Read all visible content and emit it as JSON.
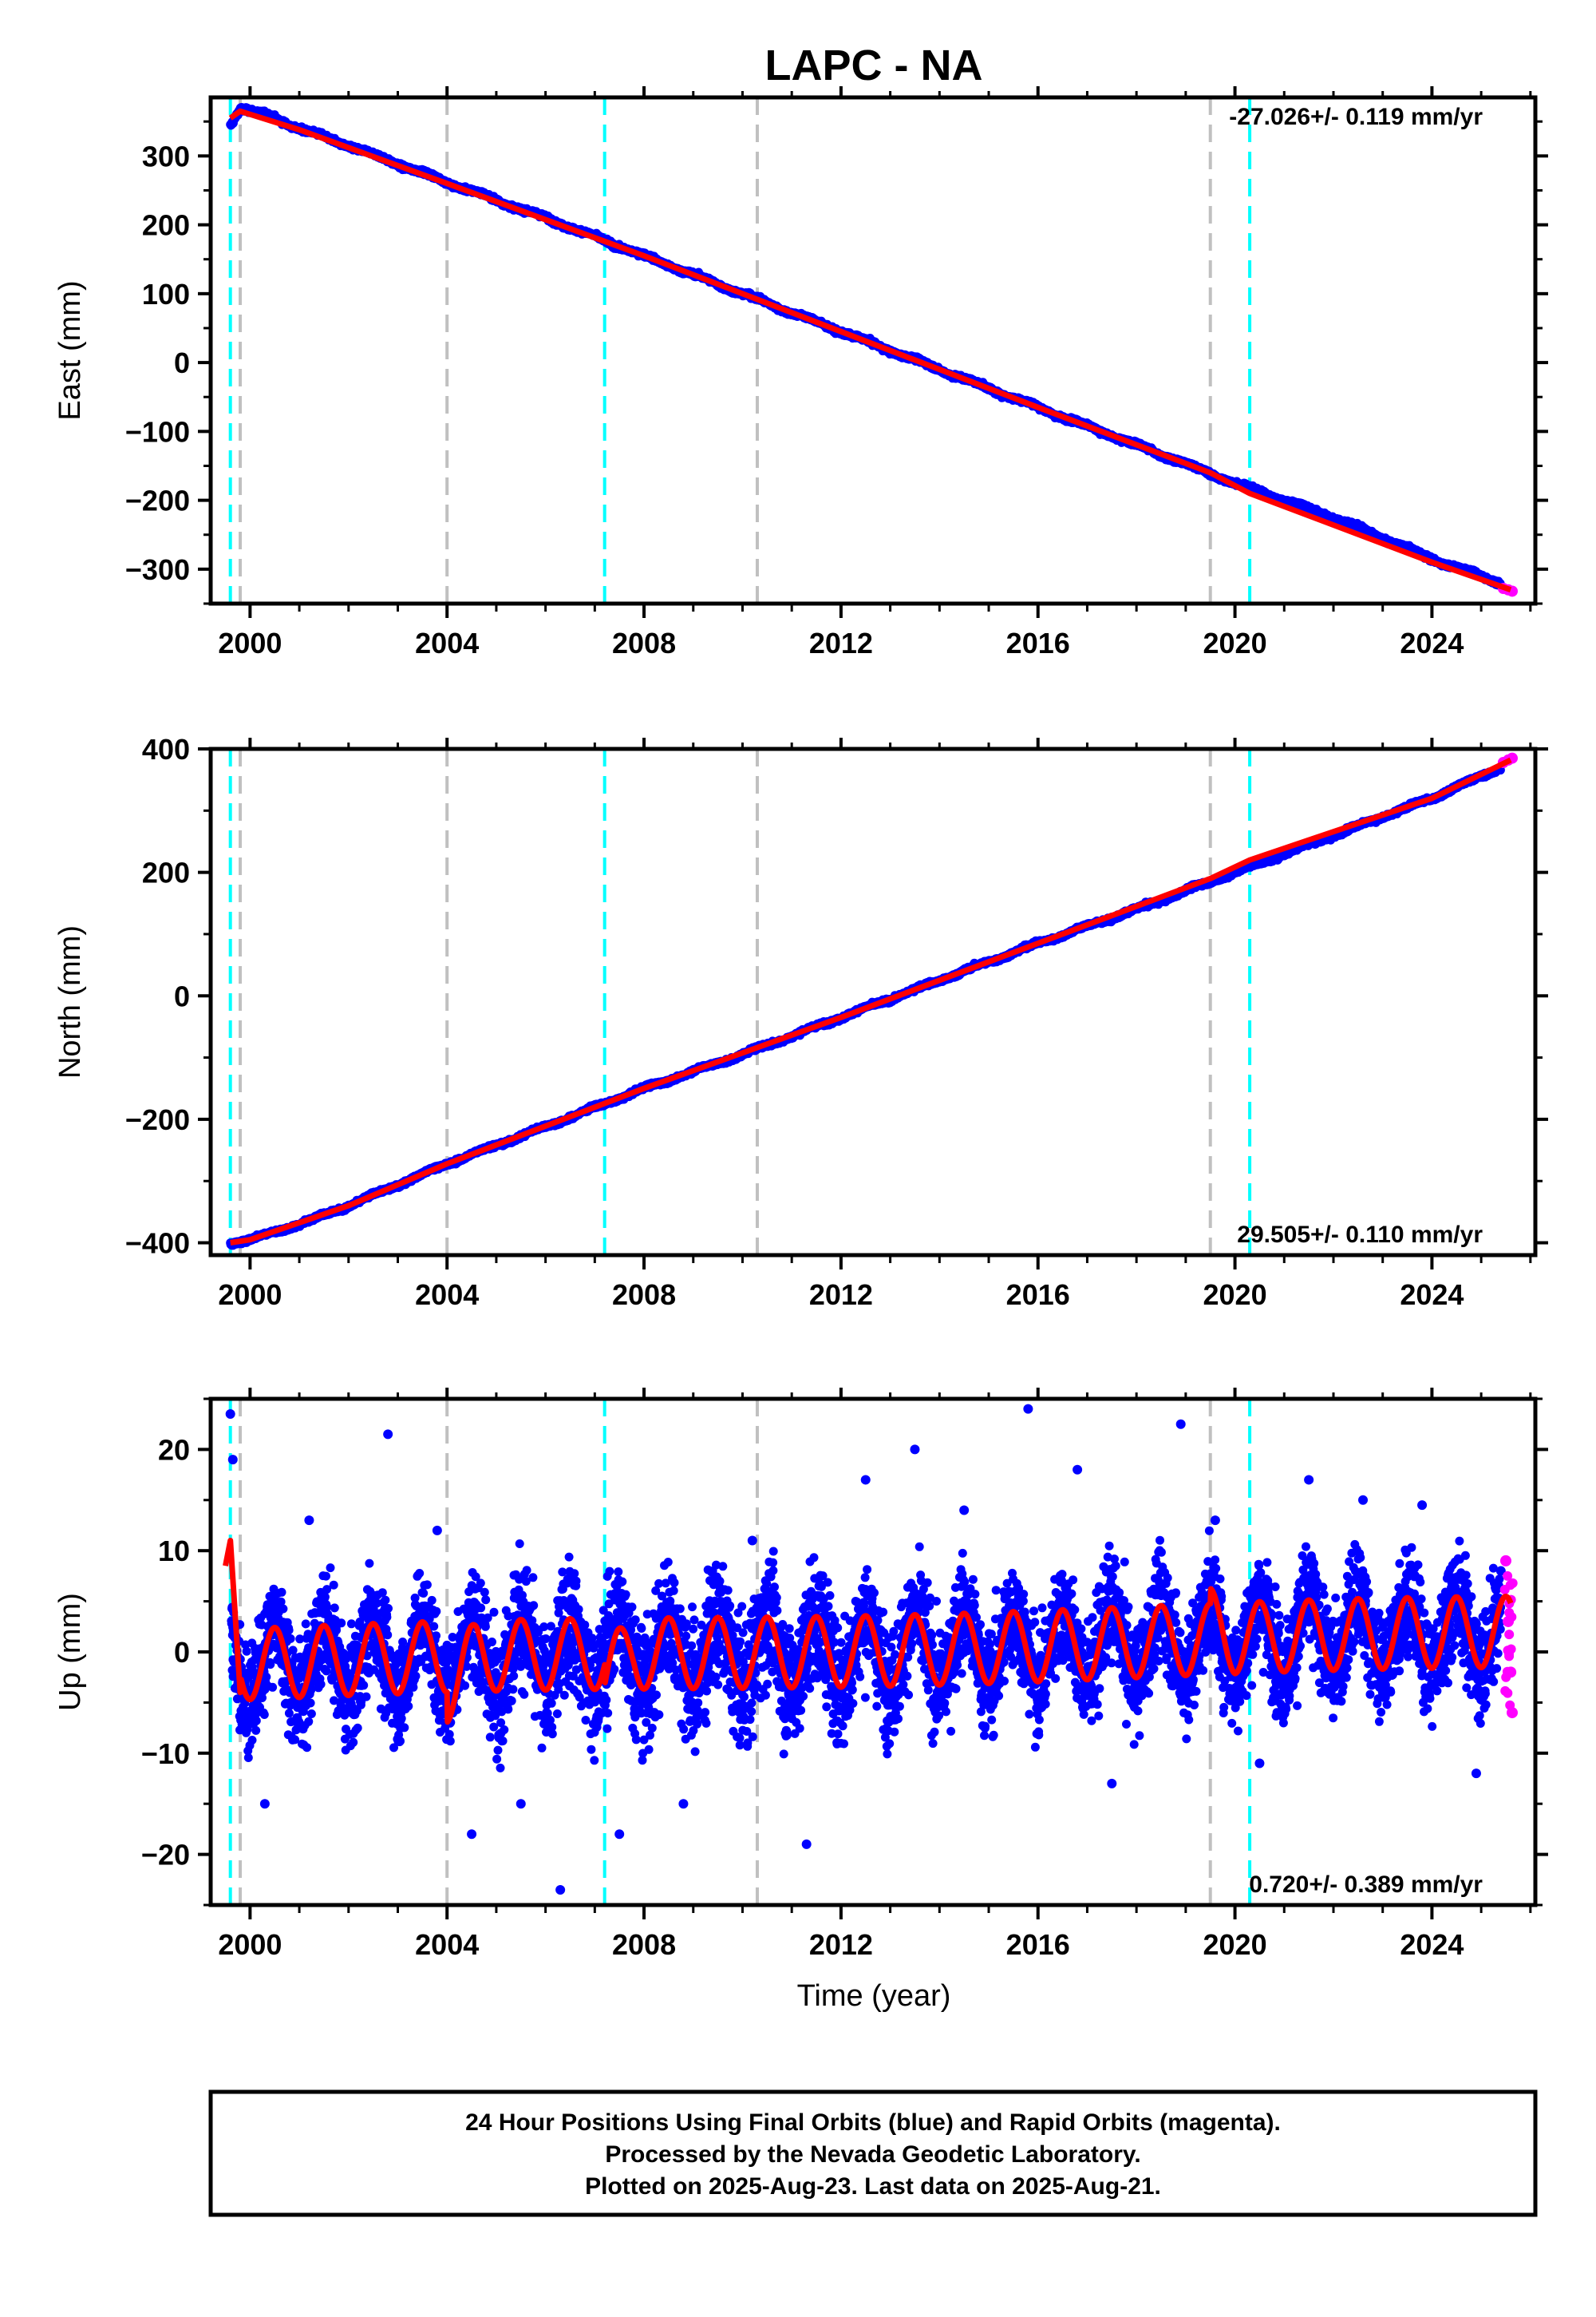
{
  "chart_data": [
    {
      "type": "line",
      "title": "LAPC - NA",
      "ylabel": "East (mm)",
      "xlabel": "",
      "xlim": [
        1999.2,
        2026.1
      ],
      "ylim": [
        -350,
        385
      ],
      "xticks": [
        2000,
        2004,
        2008,
        2012,
        2016,
        2020,
        2024
      ],
      "xtick_labels": [
        "2000",
        "2004",
        "2008",
        "2012",
        "2016",
        "2020",
        "2024"
      ],
      "yticks": [
        -300,
        -200,
        -100,
        0,
        100,
        200,
        300
      ],
      "ytick_labels": [
        "−300",
        "−200",
        "−100",
        "0",
        "100",
        "200",
        "300"
      ],
      "rate_label": "-27.026+/- 0.119 mm/yr",
      "rate_position": "top-right",
      "grid": false,
      "series": [
        {
          "role": "final orbits",
          "color": "#0000ff",
          "style": "points",
          "x": [
            1999.6,
            1999.8,
            2000.5,
            2001.0,
            2002.0,
            2004.0,
            2006.0,
            2008.0,
            2010.0,
            2012.0,
            2014.0,
            2016.0,
            2018.0,
            2020.0,
            2022.0,
            2024.0,
            2025.4
          ],
          "y": [
            345,
            370,
            355,
            340,
            315,
            262,
            210,
            155,
            100,
            45,
            -10,
            -65,
            -120,
            -175,
            -225,
            -285,
            -320
          ]
        },
        {
          "role": "rapid orbits",
          "color": "#ff00ff",
          "style": "points",
          "x": [
            2025.45,
            2025.55,
            2025.63
          ],
          "y": [
            -328,
            -330,
            -332
          ]
        },
        {
          "role": "model fit",
          "color": "#ff0000",
          "style": "line",
          "x": [
            1999.6,
            1999.8,
            2001.0,
            2004.0,
            2008.0,
            2012.0,
            2016.0,
            2019.5,
            2020.3,
            2024.0,
            2025.6
          ],
          "y": [
            355,
            365,
            338,
            260,
            155,
            45,
            -65,
            -160,
            -190,
            -290,
            -330
          ]
        }
      ],
      "vlines": [
        {
          "x": 1999.6,
          "color": "#00ffff"
        },
        {
          "x": 1999.8,
          "color": "#c0c0c0"
        },
        {
          "x": 2004.0,
          "color": "#c0c0c0"
        },
        {
          "x": 2007.2,
          "color": "#00ffff"
        },
        {
          "x": 2010.3,
          "color": "#c0c0c0"
        },
        {
          "x": 2019.5,
          "color": "#c0c0c0"
        },
        {
          "x": 2020.3,
          "color": "#00ffff"
        }
      ]
    },
    {
      "type": "line",
      "title": "",
      "ylabel": "North (mm)",
      "xlabel": "",
      "xlim": [
        1999.2,
        2026.1
      ],
      "ylim": [
        -420,
        400
      ],
      "xticks": [
        2000,
        2004,
        2008,
        2012,
        2016,
        2020,
        2024
      ],
      "xtick_labels": [
        "2000",
        "2004",
        "2008",
        "2012",
        "2016",
        "2020",
        "2024"
      ],
      "yticks": [
        -400,
        -200,
        0,
        200,
        400
      ],
      "ytick_labels": [
        "−400",
        "−200",
        "0",
        "200",
        "400"
      ],
      "rate_label": "29.505+/- 0.110 mm/yr",
      "rate_position": "bottom-right",
      "grid": false,
      "series": [
        {
          "role": "final orbits",
          "color": "#0000ff",
          "style": "points",
          "x": [
            1999.6,
            2000.0,
            2001.0,
            2002.0,
            2004.0,
            2006.0,
            2008.0,
            2010.0,
            2012.0,
            2014.0,
            2016.0,
            2018.0,
            2020.0,
            2022.0,
            2024.0,
            2025.4
          ],
          "y": [
            -400,
            -395,
            -370,
            -340,
            -272,
            -212,
            -150,
            -95,
            -35,
            25,
            85,
            140,
            200,
            260,
            320,
            370
          ]
        },
        {
          "role": "rapid orbits",
          "color": "#ff00ff",
          "style": "points",
          "x": [
            2025.45,
            2025.55,
            2025.63
          ],
          "y": [
            378,
            382,
            385
          ]
        },
        {
          "role": "model fit",
          "color": "#ff0000",
          "style": "line",
          "x": [
            1999.6,
            2000.0,
            2002.0,
            2004.0,
            2008.0,
            2012.0,
            2016.0,
            2019.5,
            2020.3,
            2024.0,
            2025.6
          ],
          "y": [
            -400,
            -395,
            -340,
            -272,
            -150,
            -35,
            85,
            190,
            220,
            320,
            382
          ]
        }
      ],
      "vlines": [
        {
          "x": 1999.6,
          "color": "#00ffff"
        },
        {
          "x": 1999.8,
          "color": "#c0c0c0"
        },
        {
          "x": 2004.0,
          "color": "#c0c0c0"
        },
        {
          "x": 2007.2,
          "color": "#00ffff"
        },
        {
          "x": 2010.3,
          "color": "#c0c0c0"
        },
        {
          "x": 2019.5,
          "color": "#c0c0c0"
        },
        {
          "x": 2020.3,
          "color": "#00ffff"
        }
      ]
    },
    {
      "type": "line",
      "title": "",
      "ylabel": "Up (mm)",
      "xlabel": "Time (year)",
      "xlim": [
        1999.2,
        2026.1
      ],
      "ylim": [
        -25,
        25
      ],
      "xticks": [
        2000,
        2004,
        2008,
        2012,
        2016,
        2020,
        2024
      ],
      "xtick_labels": [
        "2000",
        "2004",
        "2008",
        "2012",
        "2016",
        "2020",
        "2024"
      ],
      "yticks": [
        -20,
        -10,
        0,
        10,
        20
      ],
      "ytick_labels": [
        "−20",
        "−10",
        "0",
        "10",
        "20"
      ],
      "rate_label": "0.720+/- 0.389 mm/yr",
      "rate_position": "bottom-right",
      "grid": false,
      "series": [
        {
          "role": "final orbits",
          "color": "#0000ff",
          "style": "points",
          "x": [
            1999.6,
            1999.65,
            2000.3,
            2001.2,
            2002.8,
            2003.8,
            2004.5,
            2005.5,
            2006.3,
            2007.5,
            2008.8,
            2010.2,
            2011.3,
            2012.5,
            2013.5,
            2014.5,
            2015.8,
            2016.8,
            2017.5,
            2018.9,
            2019.6,
            2020.5,
            2021.5,
            2022.6,
            2023.8,
            2024.9,
            2025.4
          ],
          "y": [
            23.5,
            19,
            -15,
            13,
            21.5,
            12,
            -18,
            -15,
            -23.5,
            -18,
            -15,
            11,
            -19,
            17,
            20,
            14,
            24,
            18,
            -13,
            22.5,
            13,
            -11,
            17,
            15,
            14.5,
            -12,
            8
          ]
        },
        {
          "role": "rapid orbits",
          "color": "#ff00ff",
          "style": "points",
          "x": [
            2025.5,
            2025.55,
            2025.6,
            2025.63
          ],
          "y": [
            9,
            3,
            -2,
            -6
          ]
        },
        {
          "role": "model fit",
          "color": "#ff0000",
          "style": "line",
          "x": [
            1999.5,
            1999.6,
            1999.8,
            2025.6
          ],
          "y": [
            8.5,
            11,
            -4,
            5
          ]
        }
      ],
      "vlines": [
        {
          "x": 1999.6,
          "color": "#00ffff"
        },
        {
          "x": 1999.8,
          "color": "#c0c0c0"
        },
        {
          "x": 2004.0,
          "color": "#c0c0c0"
        },
        {
          "x": 2007.2,
          "color": "#00ffff"
        },
        {
          "x": 2010.3,
          "color": "#c0c0c0"
        },
        {
          "x": 2019.5,
          "color": "#c0c0c0"
        },
        {
          "x": 2020.3,
          "color": "#00ffff"
        }
      ]
    }
  ],
  "footer": {
    "line1": "24 Hour Positions Using Final Orbits (blue) and Rapid Orbits (magenta).",
    "line2": "Processed by the Nevada Geodetic Laboratory.",
    "line3": "Plotted on 2025-Aug-23. Last data on 2025-Aug-21."
  }
}
